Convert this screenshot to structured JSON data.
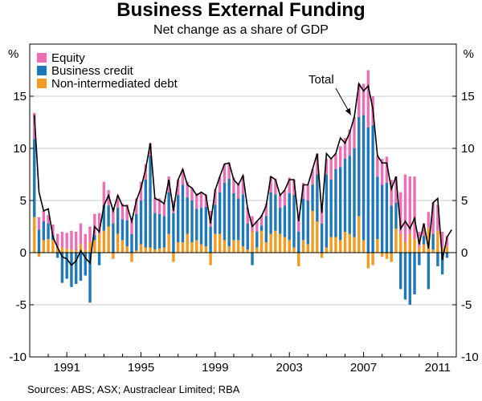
{
  "chart_data": {
    "type": "bar",
    "title": "Business External Funding",
    "subtitle": "Net change as a share of GDP",
    "ylabel_left": "%",
    "ylabel_right": "%",
    "ylim": [
      -10,
      20
    ],
    "yticks": [
      -10,
      -5,
      0,
      5,
      10,
      15
    ],
    "xlim": [
      1989.0,
      2012.0
    ],
    "xticks": [
      1991,
      1995,
      1999,
      2003,
      2007,
      2011
    ],
    "gridlines": true,
    "legend_position": "top-left",
    "source": "Sources: ABS; ASX; Austraclear Limited; RBA",
    "annotation": {
      "text": "Total",
      "arrow_to_x": 2006.4
    },
    "colors": {
      "equity": "#ea6fb4",
      "business_credit": "#1f78b8",
      "debt": "#f39a1f",
      "total": "#000000"
    },
    "series": [
      {
        "name": "Equity",
        "key": "equity"
      },
      {
        "name": "Business credit",
        "key": "credit"
      },
      {
        "name": "Non-intermediated debt",
        "key": "debt"
      },
      {
        "name": "Total",
        "key": "total",
        "type": "line"
      }
    ],
    "bars": [
      {
        "x": 1989.25,
        "equity": 2.5,
        "credit": 7.5,
        "debt": 3.4
      },
      {
        "x": 1989.5,
        "equity": 1.2,
        "credit": 2.2,
        "debt": -0.4
      },
      {
        "x": 1989.75,
        "equity": 1.0,
        "credit": 1.8,
        "debt": 1.2
      },
      {
        "x": 1990.0,
        "equity": 0.8,
        "credit": 1.5,
        "debt": 1.3
      },
      {
        "x": 1990.25,
        "equity": 1.0,
        "credit": 0.5,
        "debt": 1.2
      },
      {
        "x": 1990.5,
        "equity": 1.2,
        "credit": -0.5,
        "debt": 0.6
      },
      {
        "x": 1990.75,
        "equity": 1.5,
        "credit": -2.9,
        "debt": 0.5
      },
      {
        "x": 1991.0,
        "equity": 1.5,
        "credit": -2.5,
        "debt": 0.4
      },
      {
        "x": 1991.25,
        "equity": 1.8,
        "credit": -3.3,
        "debt": 0.3
      },
      {
        "x": 1991.5,
        "equity": 1.8,
        "credit": -3.0,
        "debt": 0.2
      },
      {
        "x": 1991.75,
        "equity": 2.0,
        "credit": -2.7,
        "debt": 0.8
      },
      {
        "x": 1992.0,
        "equity": 1.5,
        "credit": -2.2,
        "debt": 0.3
      },
      {
        "x": 1992.25,
        "equity": 1.5,
        "credit": -4.8,
        "debt": 1.0
      },
      {
        "x": 1992.5,
        "equity": 2.0,
        "credit": 0.5,
        "debt": 1.2
      },
      {
        "x": 1992.75,
        "equity": 2.0,
        "credit": -1.2,
        "debt": 1.8
      },
      {
        "x": 1993.0,
        "equity": 2.2,
        "credit": 2.5,
        "debt": 2.1
      },
      {
        "x": 1993.25,
        "equity": 1.5,
        "credit": 2.0,
        "debt": 2.5
      },
      {
        "x": 1993.5,
        "equity": 1.5,
        "credit": 2.8,
        "debt": -0.6
      },
      {
        "x": 1993.75,
        "equity": 1.2,
        "credit": 2.5,
        "debt": 1.8
      },
      {
        "x": 1994.0,
        "equity": 1.5,
        "credit": 2.0,
        "debt": 1.2
      },
      {
        "x": 1994.25,
        "equity": 1.5,
        "credit": 2.5,
        "debt": 0.6
      },
      {
        "x": 1994.5,
        "equity": 1.5,
        "credit": 1.8,
        "debt": -0.9
      },
      {
        "x": 1994.75,
        "equity": 1.5,
        "credit": 3.5,
        "debt": 0.2
      },
      {
        "x": 1995.0,
        "equity": 1.8,
        "credit": 4.2,
        "debt": 0.8
      },
      {
        "x": 1995.25,
        "equity": 1.5,
        "credit": 6.5,
        "debt": 0.5
      },
      {
        "x": 1995.5,
        "equity": 1.2,
        "credit": 8.8,
        "debt": 0.5
      },
      {
        "x": 1995.75,
        "equity": 1.5,
        "credit": 3.5,
        "debt": 0.3
      },
      {
        "x": 1996.0,
        "equity": 1.5,
        "credit": 3.3,
        "debt": 0.4
      },
      {
        "x": 1996.25,
        "equity": 1.2,
        "credit": 3.0,
        "debt": 0.5
      },
      {
        "x": 1996.5,
        "equity": 1.5,
        "credit": 4.0,
        "debt": 1.8
      },
      {
        "x": 1996.75,
        "equity": 1.2,
        "credit": 3.8,
        "debt": -0.9
      },
      {
        "x": 1997.0,
        "equity": 1.5,
        "credit": 4.5,
        "debt": 1.0
      },
      {
        "x": 1997.25,
        "equity": 1.5,
        "credit": 5.5,
        "debt": 1.0
      },
      {
        "x": 1997.5,
        "equity": 1.5,
        "credit": 3.5,
        "debt": 1.8
      },
      {
        "x": 1997.75,
        "equity": 1.2,
        "credit": 4.0,
        "debt": 1.0
      },
      {
        "x": 1998.0,
        "equity": 1.5,
        "credit": 3.0,
        "debt": 1.2
      },
      {
        "x": 1998.25,
        "equity": 1.5,
        "credit": 3.5,
        "debt": 0.8
      },
      {
        "x": 1998.5,
        "equity": 1.2,
        "credit": 3.8,
        "debt": 0.6
      },
      {
        "x": 1998.75,
        "equity": 1.5,
        "credit": 2.5,
        "debt": -1.2
      },
      {
        "x": 1999.0,
        "equity": 1.5,
        "credit": 2.8,
        "debt": 1.8
      },
      {
        "x": 1999.25,
        "equity": 1.5,
        "credit": 4.0,
        "debt": 1.8
      },
      {
        "x": 1999.5,
        "equity": 1.8,
        "credit": 5.5,
        "debt": 1.2
      },
      {
        "x": 1999.75,
        "equity": 1.5,
        "credit": 6.5,
        "debt": 0.6
      },
      {
        "x": 2000.0,
        "equity": 1.5,
        "credit": 4.5,
        "debt": 1.2
      },
      {
        "x": 2000.25,
        "equity": 1.5,
        "credit": 4.0,
        "debt": 1.2
      },
      {
        "x": 2000.5,
        "equity": 1.8,
        "credit": 5.0,
        "debt": 0.6
      },
      {
        "x": 2000.75,
        "equity": 1.5,
        "credit": 2.5,
        "debt": 0.3
      },
      {
        "x": 2001.0,
        "equity": 1.5,
        "credit": -1.2,
        "debt": 2.0
      },
      {
        "x": 2001.25,
        "equity": 1.0,
        "credit": 1.5,
        "debt": 0.5
      },
      {
        "x": 2001.5,
        "equity": 1.0,
        "credit": 0.5,
        "debt": 2.1
      },
      {
        "x": 2001.75,
        "equity": 1.2,
        "credit": 2.5,
        "debt": 1.0
      },
      {
        "x": 2002.0,
        "equity": 1.5,
        "credit": 4.0,
        "debt": 1.8
      },
      {
        "x": 2002.25,
        "equity": 1.5,
        "credit": 3.5,
        "debt": 2.1
      },
      {
        "x": 2002.5,
        "equity": 1.2,
        "credit": 2.5,
        "debt": 1.8
      },
      {
        "x": 2002.75,
        "equity": 1.5,
        "credit": 3.0,
        "debt": 1.5
      },
      {
        "x": 2003.0,
        "equity": 1.5,
        "credit": 4.5,
        "debt": 1.2
      },
      {
        "x": 2003.25,
        "equity": 1.5,
        "credit": 5.0,
        "debt": 0.5
      },
      {
        "x": 2003.5,
        "equity": 1.5,
        "credit": 2.0,
        "debt": -1.3
      },
      {
        "x": 2003.75,
        "equity": 1.5,
        "credit": 4.0,
        "debt": 1.2
      },
      {
        "x": 2004.0,
        "equity": 1.5,
        "credit": 4.2,
        "debt": 0.8
      },
      {
        "x": 2004.25,
        "equity": 1.5,
        "credit": 2.5,
        "debt": 4.0
      },
      {
        "x": 2004.5,
        "equity": 2.0,
        "credit": 4.5,
        "debt": 3.0
      },
      {
        "x": 2004.75,
        "equity": 1.5,
        "credit": 2.8,
        "debt": -0.5
      },
      {
        "x": 2005.0,
        "equity": 1.5,
        "credit": 7.0,
        "debt": 0.5
      },
      {
        "x": 2005.25,
        "equity": 2.0,
        "credit": 5.5,
        "debt": 1.5
      },
      {
        "x": 2005.5,
        "equity": 1.5,
        "credit": 6.5,
        "debt": 1.5
      },
      {
        "x": 2005.75,
        "equity": 2.0,
        "credit": 7.0,
        "debt": 1.2
      },
      {
        "x": 2006.0,
        "equity": 2.0,
        "credit": 7.0,
        "debt": 2.0
      },
      {
        "x": 2006.25,
        "equity": 2.5,
        "credit": 7.5,
        "debt": 1.8
      },
      {
        "x": 2006.5,
        "equity": 3.0,
        "credit": 8.5,
        "debt": 1.5
      },
      {
        "x": 2006.75,
        "equity": 3.2,
        "credit": 9.5,
        "debt": 3.5
      },
      {
        "x": 2007.0,
        "equity": 3.0,
        "credit": 12.0,
        "debt": 1.2
      },
      {
        "x": 2007.25,
        "equity": 5.5,
        "credit": 12.0,
        "debt": -1.5
      },
      {
        "x": 2007.5,
        "equity": 2.8,
        "credit": 12.2,
        "debt": -1.2
      },
      {
        "x": 2007.75,
        "equity": 2.0,
        "credit": 6.0,
        "debt": 1.3
      },
      {
        "x": 2008.0,
        "equity": 2.5,
        "credit": 6.5,
        "debt": -0.4
      },
      {
        "x": 2008.25,
        "equity": 2.5,
        "credit": 6.7,
        "debt": -0.6
      },
      {
        "x": 2008.5,
        "equity": 2.5,
        "credit": 4.5,
        "debt": -0.9
      },
      {
        "x": 2008.75,
        "equity": 2.5,
        "credit": 2.5,
        "debt": 2.3
      },
      {
        "x": 2009.0,
        "equity": 4.0,
        "credit": -3.5,
        "debt": 1.8
      },
      {
        "x": 2009.25,
        "equity": 6.5,
        "credit": -4.5,
        "debt": 1.0
      },
      {
        "x": 2009.5,
        "equity": 5.5,
        "credit": -5.0,
        "debt": 1.8
      },
      {
        "x": 2009.75,
        "equity": 6.0,
        "credit": -4.0,
        "debt": 1.3
      },
      {
        "x": 2010.0,
        "equity": 1.5,
        "credit": -1.2,
        "debt": 0.5
      },
      {
        "x": 2010.25,
        "equity": 1.2,
        "credit": 0.8,
        "debt": 0.8
      },
      {
        "x": 2010.5,
        "equity": 1.5,
        "credit": -3.5,
        "debt": 2.4
      },
      {
        "x": 2010.75,
        "equity": 3.0,
        "credit": 1.5,
        "debt": 0.3
      },
      {
        "x": 2011.0,
        "equity": 2.5,
        "credit": -1.3,
        "debt": 2.1
      },
      {
        "x": 2011.25,
        "equity": 1.5,
        "credit": -2.1,
        "debt": 0.5
      },
      {
        "x": 2011.5,
        "equity": 1.0,
        "credit": -0.5,
        "debt": 0.6
      }
    ],
    "total_line": [
      [
        1989.25,
        13.2
      ],
      [
        1989.5,
        5.8
      ],
      [
        1989.75,
        4.0
      ],
      [
        1990.0,
        4.2
      ],
      [
        1990.25,
        1.5
      ],
      [
        1990.5,
        0.5
      ],
      [
        1990.75,
        -0.4
      ],
      [
        1991.0,
        -0.6
      ],
      [
        1991.25,
        -1.2
      ],
      [
        1991.5,
        -0.8
      ],
      [
        1991.75,
        0.2
      ],
      [
        1992.0,
        -0.5
      ],
      [
        1992.25,
        -1.0
      ],
      [
        1992.5,
        2.5
      ],
      [
        1992.75,
        2.0
      ],
      [
        1993.0,
        4.5
      ],
      [
        1993.25,
        5.5
      ],
      [
        1993.5,
        4.0
      ],
      [
        1993.75,
        5.5
      ],
      [
        1994.0,
        4.5
      ],
      [
        1994.25,
        4.5
      ],
      [
        1994.5,
        3.0
      ],
      [
        1994.75,
        5.0
      ],
      [
        1995.0,
        6.2
      ],
      [
        1995.25,
        8.0
      ],
      [
        1995.5,
        10.5
      ],
      [
        1995.75,
        5.2
      ],
      [
        1996.0,
        5.0
      ],
      [
        1996.25,
        4.7
      ],
      [
        1996.5,
        7.0
      ],
      [
        1996.75,
        4.0
      ],
      [
        1997.0,
        7.0
      ],
      [
        1997.25,
        8.0
      ],
      [
        1997.5,
        6.5
      ],
      [
        1997.75,
        6.2
      ],
      [
        1998.0,
        5.5
      ],
      [
        1998.25,
        5.8
      ],
      [
        1998.5,
        5.5
      ],
      [
        1998.75,
        2.8
      ],
      [
        1999.0,
        6.0
      ],
      [
        1999.25,
        7.3
      ],
      [
        1999.5,
        8.5
      ],
      [
        1999.75,
        8.6
      ],
      [
        2000.0,
        7.0
      ],
      [
        2000.25,
        6.5
      ],
      [
        2000.5,
        7.4
      ],
      [
        2000.75,
        4.2
      ],
      [
        2001.0,
        2.5
      ],
      [
        2001.25,
        3.0
      ],
      [
        2001.5,
        3.5
      ],
      [
        2001.75,
        4.5
      ],
      [
        2002.0,
        7.3
      ],
      [
        2002.25,
        7.0
      ],
      [
        2002.5,
        5.5
      ],
      [
        2002.75,
        6.0
      ],
      [
        2003.0,
        7.0
      ],
      [
        2003.25,
        7.0
      ],
      [
        2003.5,
        3.0
      ],
      [
        2003.75,
        6.5
      ],
      [
        2004.0,
        6.5
      ],
      [
        2004.25,
        8.0
      ],
      [
        2004.5,
        9.5
      ],
      [
        2004.75,
        3.8
      ],
      [
        2005.0,
        9.5
      ],
      [
        2005.25,
        9.0
      ],
      [
        2005.5,
        9.5
      ],
      [
        2005.75,
        11.0
      ],
      [
        2006.0,
        10.5
      ],
      [
        2006.25,
        11.5
      ],
      [
        2006.5,
        13.0
      ],
      [
        2006.75,
        16.2
      ],
      [
        2007.0,
        15.5
      ],
      [
        2007.25,
        16.0
      ],
      [
        2007.5,
        13.8
      ],
      [
        2007.75,
        9.3
      ],
      [
        2008.0,
        8.6
      ],
      [
        2008.25,
        8.6
      ],
      [
        2008.5,
        6.1
      ],
      [
        2008.75,
        7.3
      ],
      [
        2009.0,
        2.3
      ],
      [
        2009.25,
        3.0
      ],
      [
        2009.5,
        2.3
      ],
      [
        2009.75,
        3.3
      ],
      [
        2010.0,
        0.8
      ],
      [
        2010.25,
        2.8
      ],
      [
        2010.5,
        0.4
      ],
      [
        2010.75,
        4.8
      ],
      [
        2011.0,
        5.2
      ],
      [
        2011.25,
        -0.7
      ],
      [
        2011.5,
        1.5
      ],
      [
        2011.75,
        2.2
      ]
    ]
  }
}
